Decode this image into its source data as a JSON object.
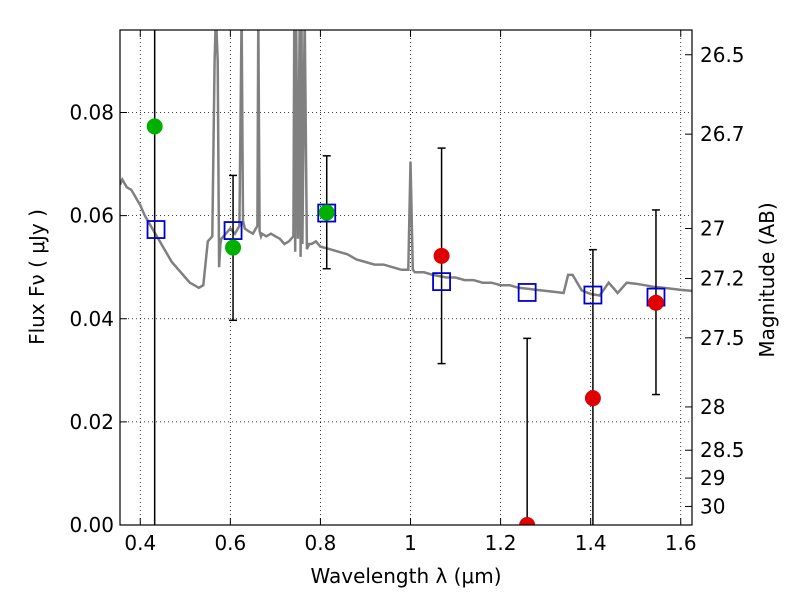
{
  "chart_data": {
    "type": "scatter",
    "xlabel": "Wavelength  λ (μm)",
    "ylabel": "Flux  Fν ( μJy )",
    "ylabel_right": "Magnitude (AB)",
    "xlim": [
      0.355,
      1.625
    ],
    "ylim": [
      0.0,
      0.096
    ],
    "grid": true,
    "x_ticks": [
      0.4,
      0.6,
      0.8,
      1.0,
      1.2,
      1.4,
      1.6
    ],
    "x_tick_labels": [
      "0.4",
      "0.6",
      "0.8",
      "1",
      "1.2",
      "1.4",
      "1.6"
    ],
    "y_ticks": [
      0.0,
      0.02,
      0.04,
      0.06,
      0.08
    ],
    "y_tick_labels": [
      "0.00",
      "0.02",
      "0.04",
      "0.06",
      "0.08"
    ],
    "right_ticks": [
      {
        "label": "26.5",
        "flux": 0.0912
      },
      {
        "label": "26.7",
        "flux": 0.0758
      },
      {
        "label": "27",
        "flux": 0.0575
      },
      {
        "label": "27.2",
        "flux": 0.0478
      },
      {
        "label": "27.5",
        "flux": 0.0363
      },
      {
        "label": "28",
        "flux": 0.0229
      },
      {
        "label": "28.5",
        "flux": 0.0145
      },
      {
        "label": "29",
        "flux": 0.0091
      },
      {
        "label": "30",
        "flux": 0.0036
      }
    ],
    "series": [
      {
        "marker": "square-open",
        "color": "#0000cc",
        "points": [
          {
            "x": 0.435,
            "y": 0.0573
          },
          {
            "x": 0.606,
            "y": 0.0571
          },
          {
            "x": 0.814,
            "y": 0.0605
          },
          {
            "x": 1.069,
            "y": 0.0472
          },
          {
            "x": 1.259,
            "y": 0.0451
          },
          {
            "x": 1.405,
            "y": 0.0446
          },
          {
            "x": 1.545,
            "y": 0.0442
          }
        ]
      },
      {
        "marker": "circle",
        "color": "#00b000",
        "points": [
          {
            "x": 0.432,
            "y": 0.0773,
            "err_low": 0.0,
            "err_high": 0.0962
          },
          {
            "x": 0.606,
            "y": 0.0538,
            "err_low": 0.0397,
            "err_high": 0.0678
          },
          {
            "x": 0.814,
            "y": 0.0606,
            "err_low": 0.0497,
            "err_high": 0.0716
          }
        ]
      },
      {
        "marker": "circle",
        "color": "#e00000",
        "points": [
          {
            "x": 1.069,
            "y": 0.0522,
            "err_low": 0.0313,
            "err_high": 0.0731
          },
          {
            "x": 1.259,
            "y": 0.0,
            "err_low": 0.0,
            "err_high": 0.0362
          },
          {
            "x": 1.405,
            "y": 0.0246,
            "err_low": 0.0,
            "err_high": 0.0534
          },
          {
            "x": 1.545,
            "y": 0.0431,
            "err_low": 0.0253,
            "err_high": 0.0611
          }
        ]
      }
    ],
    "model_spectrum": {
      "color": "#808080",
      "x": [
        0.355,
        0.36,
        0.37,
        0.38,
        0.39,
        0.4,
        0.41,
        0.42,
        0.43,
        0.44,
        0.45,
        0.46,
        0.47,
        0.48,
        0.49,
        0.5,
        0.51,
        0.52,
        0.53,
        0.54,
        0.55,
        0.56,
        0.565,
        0.568,
        0.572,
        0.575,
        0.578,
        0.58,
        0.59,
        0.6,
        0.61,
        0.62,
        0.625,
        0.628,
        0.632,
        0.64,
        0.65,
        0.66,
        0.662,
        0.665,
        0.668,
        0.67,
        0.68,
        0.69,
        0.7,
        0.71,
        0.72,
        0.73,
        0.74,
        0.742,
        0.744,
        0.746,
        0.75,
        0.754,
        0.756,
        0.758,
        0.76,
        0.765,
        0.77,
        0.775,
        0.78,
        0.79,
        0.8,
        0.82,
        0.84,
        0.86,
        0.88,
        0.9,
        0.92,
        0.94,
        0.96,
        0.98,
        0.995,
        1.0,
        1.005,
        1.01,
        1.03,
        1.05,
        1.08,
        1.1,
        1.12,
        1.14,
        1.16,
        1.18,
        1.2,
        1.22,
        1.24,
        1.26,
        1.28,
        1.3,
        1.32,
        1.34,
        1.35,
        1.36,
        1.38,
        1.4,
        1.42,
        1.44,
        1.46,
        1.48,
        1.5,
        1.52,
        1.54,
        1.56,
        1.58,
        1.6,
        1.625
      ],
      "y": [
        0.066,
        0.067,
        0.0655,
        0.065,
        0.0635,
        0.062,
        0.06,
        0.0585,
        0.057,
        0.0555,
        0.054,
        0.0525,
        0.051,
        0.05,
        0.049,
        0.048,
        0.047,
        0.0465,
        0.046,
        0.0465,
        0.055,
        0.056,
        0.09,
        0.099,
        0.09,
        0.05,
        0.0545,
        0.0555,
        0.0565,
        0.0575,
        0.0565,
        0.058,
        0.099,
        0.059,
        0.0575,
        0.057,
        0.0565,
        0.058,
        0.099,
        0.057,
        0.056,
        0.0565,
        0.056,
        0.0565,
        0.056,
        0.0555,
        0.0545,
        0.055,
        0.056,
        0.099,
        0.053,
        0.099,
        0.0555,
        0.099,
        0.052,
        0.099,
        0.0545,
        0.099,
        0.0535,
        0.0545,
        0.0545,
        0.055,
        0.054,
        0.0535,
        0.053,
        0.0525,
        0.0515,
        0.051,
        0.0505,
        0.0505,
        0.05,
        0.0495,
        0.0495,
        0.0705,
        0.0495,
        0.049,
        0.049,
        0.0485,
        0.048,
        0.048,
        0.0475,
        0.0475,
        0.047,
        0.047,
        0.0465,
        0.0465,
        0.046,
        0.0458,
        0.0456,
        0.0454,
        0.0452,
        0.045,
        0.0485,
        0.0485,
        0.0455,
        0.0448,
        0.0445,
        0.047,
        0.045,
        0.047,
        0.0468,
        0.0465,
        0.0462,
        0.046,
        0.0458,
        0.0456,
        0.0454
      ]
    }
  }
}
